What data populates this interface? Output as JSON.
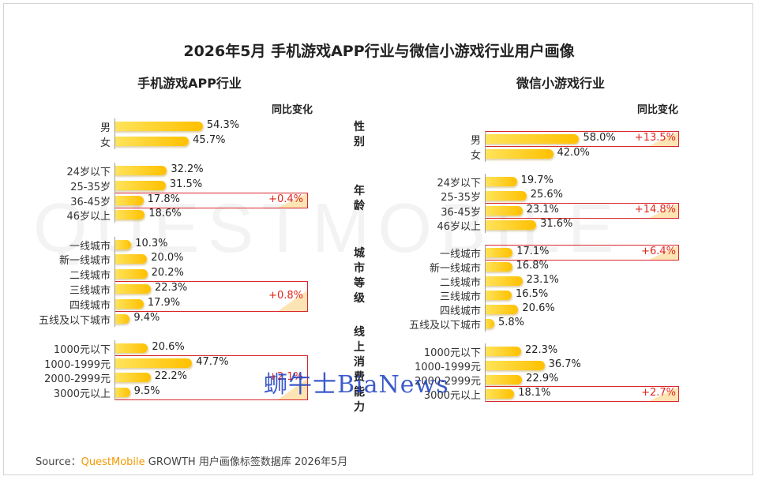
{
  "title": "2026年5月 手机游戏APP行业与微信小游戏行业用户画像",
  "watermark": "QUESTMOBILE",
  "stamp": "蛳牛士BiaNews",
  "center_labels": [
    "性别",
    "年龄",
    "城市等级",
    "线上消费能力"
  ],
  "source": {
    "prefix": "Source：",
    "brand": "QuestMobile",
    "rest": " GROWTH 用户画像标签数据库 2026年5月"
  },
  "colors": {
    "bar": "#ffc000",
    "bar_light": "#ffe45c",
    "highlight": "#d9262c",
    "change_text": "#e0261b"
  },
  "chart_data": [
    {
      "type": "bar",
      "title": "手机游戏APP行业",
      "change_header": "同比变化",
      "unit": "%",
      "groups": [
        {
          "name": "性别",
          "items": [
            {
              "label": "男",
              "value": 54.3
            },
            {
              "label": "女",
              "value": 45.7
            }
          ]
        },
        {
          "name": "年龄",
          "items": [
            {
              "label": "24岁以下",
              "value": 32.2
            },
            {
              "label": "25-35岁",
              "value": 31.5
            },
            {
              "label": "36-45岁",
              "value": 17.8,
              "change": "+0.4%"
            },
            {
              "label": "46岁以上",
              "value": 18.6
            }
          ]
        },
        {
          "name": "城市等级",
          "items": [
            {
              "label": "一线城市",
              "value": 10.3
            },
            {
              "label": "新一线城市",
              "value": 20.0
            },
            {
              "label": "二线城市",
              "value": 20.2
            },
            {
              "label": "三线城市",
              "value": 22.3,
              "change": "+0.8%",
              "box_span": 2
            },
            {
              "label": "四线城市",
              "value": 17.9
            },
            {
              "label": "五线及以下城市",
              "value": 9.4
            }
          ]
        },
        {
          "name": "线上消费能力",
          "items": [
            {
              "label": "1000元以下",
              "value": 20.6
            },
            {
              "label": "1000-1999元",
              "value": 47.7,
              "change": "+2.1%",
              "box_span": 3
            },
            {
              "label": "2000-2999元",
              "value": 22.2
            },
            {
              "label": "3000元以上",
              "value": 9.5
            }
          ]
        }
      ]
    },
    {
      "type": "bar",
      "title": "微信小游戏行业",
      "change_header": "同比变化",
      "unit": "%",
      "groups": [
        {
          "name": "性别",
          "items": [
            {
              "label": "男",
              "value": 58.0,
              "change": "+13.5%"
            },
            {
              "label": "女",
              "value": 42.0
            }
          ]
        },
        {
          "name": "年龄",
          "items": [
            {
              "label": "24岁以下",
              "value": 19.7
            },
            {
              "label": "25-35岁",
              "value": 25.6
            },
            {
              "label": "36-45岁",
              "value": 23.1,
              "change": "+14.8%"
            },
            {
              "label": "46岁以上",
              "value": 31.6
            }
          ]
        },
        {
          "name": "城市等级",
          "items": [
            {
              "label": "一线城市",
              "value": 17.1,
              "change": "+6.4%"
            },
            {
              "label": "新一线城市",
              "value": 16.8
            },
            {
              "label": "二线城市",
              "value": 23.1
            },
            {
              "label": "三线城市",
              "value": 16.5
            },
            {
              "label": "四线城市",
              "value": 20.6
            },
            {
              "label": "五线及以下城市",
              "value": 5.8
            }
          ]
        },
        {
          "name": "线上消费能力",
          "items": [
            {
              "label": "1000元以下",
              "value": 22.3
            },
            {
              "label": "1000-1999元",
              "value": 36.7
            },
            {
              "label": "2000-2999元",
              "value": 22.9
            },
            {
              "label": "3000元以上",
              "value": 18.1,
              "change": "+2.7%"
            }
          ]
        }
      ]
    }
  ]
}
